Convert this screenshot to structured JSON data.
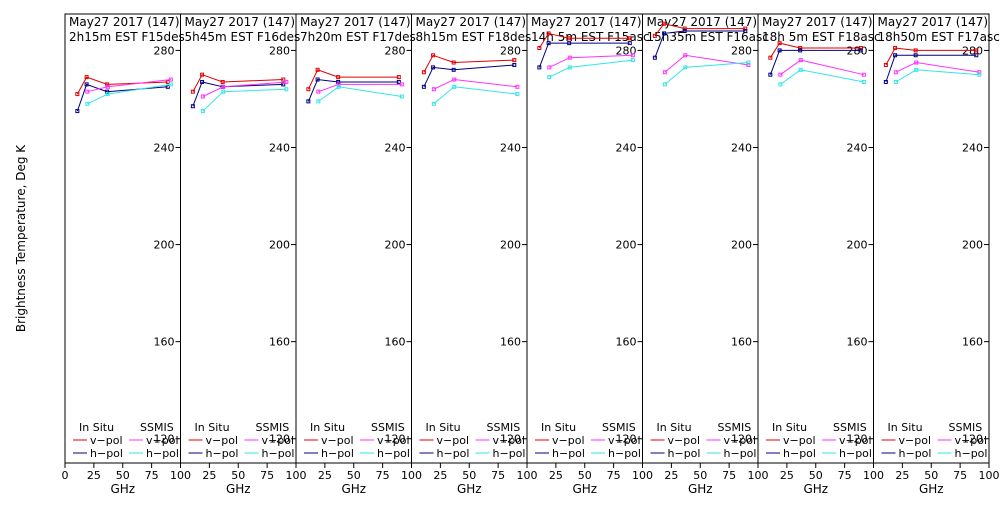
{
  "chart_data": {
    "type": "line",
    "ylabel": "Brightness Temperature, Deg K",
    "xlabel": "GHz",
    "ylim": [
      110,
      295
    ],
    "xlim": [
      0,
      100
    ],
    "yticks": [
      120,
      160,
      200,
      240,
      280
    ],
    "xticks": [
      0,
      25,
      50,
      75,
      100
    ],
    "xticklabels": [
      "0",
      "25",
      "50",
      "75",
      "100"
    ],
    "colors": {
      "insitu_v": "#e00000",
      "insitu_h": "#00007f",
      "ssmis_v": "#ff33ff",
      "ssmis_h": "#33e6e6"
    },
    "legend": {
      "insitu_header": "In Situ",
      "ssmis_header": "SSMIS",
      "insitu_v": "v−pol",
      "insitu_h": "h−pol",
      "ssmis_v": "v−pol",
      "ssmis_h": "h−pol"
    },
    "panels": [
      {
        "title1": "May27 2017 (147)",
        "title2": "2h15m EST F15des",
        "series": [
          {
            "key": "insitu_v",
            "x": [
              10.7,
              18.7,
              36.5,
              89
            ],
            "y": [
              262,
              269,
              266,
              267
            ]
          },
          {
            "key": "insitu_h",
            "x": [
              10.7,
              18.7,
              36.5,
              89
            ],
            "y": [
              255,
              266,
              263,
              265
            ]
          },
          {
            "key": "ssmis_v",
            "x": [
              19.35,
              37,
              91.65
            ],
            "y": [
              263,
              265,
              268
            ]
          },
          {
            "key": "ssmis_h",
            "x": [
              19.35,
              37,
              91.65
            ],
            "y": [
              258,
              262,
              266
            ]
          }
        ]
      },
      {
        "title1": "May27 2017 (147)",
        "title2": "5h45m EST F16des",
        "series": [
          {
            "key": "insitu_v",
            "x": [
              10.7,
              18.7,
              36.5,
              89
            ],
            "y": [
              263,
              270,
              267,
              268
            ]
          },
          {
            "key": "insitu_h",
            "x": [
              10.7,
              18.7,
              36.5,
              89
            ],
            "y": [
              257,
              267,
              265,
              266
            ]
          },
          {
            "key": "ssmis_v",
            "x": [
              19.35,
              37,
              91.65
            ],
            "y": [
              261,
              265,
              267
            ]
          },
          {
            "key": "ssmis_h",
            "x": [
              19.35,
              37,
              91.65
            ],
            "y": [
              255,
              263,
              264
            ]
          }
        ]
      },
      {
        "title1": "May27 2017 (147)",
        "title2": "7h20m EST F17des",
        "series": [
          {
            "key": "insitu_v",
            "x": [
              10.7,
              18.7,
              36.5,
              89
            ],
            "y": [
              264,
              272,
              269,
              269
            ]
          },
          {
            "key": "insitu_h",
            "x": [
              10.7,
              18.7,
              36.5,
              89
            ],
            "y": [
              259,
              268,
              267,
              267
            ]
          },
          {
            "key": "ssmis_v",
            "x": [
              19.35,
              37,
              91.65
            ],
            "y": [
              263,
              266,
              266
            ]
          },
          {
            "key": "ssmis_h",
            "x": [
              19.35,
              37,
              91.65
            ],
            "y": [
              259,
              265,
              261
            ]
          }
        ]
      },
      {
        "title1": "May27 2017 (147)",
        "title2": "8h15m EST F18des",
        "series": [
          {
            "key": "insitu_v",
            "x": [
              10.7,
              18.7,
              36.5,
              89
            ],
            "y": [
              271,
              278,
              275,
              276
            ]
          },
          {
            "key": "insitu_h",
            "x": [
              10.7,
              18.7,
              36.5,
              89
            ],
            "y": [
              265,
              273,
              272,
              274
            ]
          },
          {
            "key": "ssmis_v",
            "x": [
              19.35,
              37,
              91.65
            ],
            "y": [
              264,
              268,
              265
            ]
          },
          {
            "key": "ssmis_h",
            "x": [
              19.35,
              37,
              91.65
            ],
            "y": [
              258,
              265,
              262
            ]
          }
        ]
      },
      {
        "title1": "May27 2017 (147)",
        "title2": "14h 5m EST F15asc",
        "series": [
          {
            "key": "insitu_v",
            "x": [
              10.7,
              18.7,
              36.5,
              89
            ],
            "y": [
              281,
              287,
              285,
              285
            ]
          },
          {
            "key": "insitu_h",
            "x": [
              10.7,
              18.7,
              36.5,
              89
            ],
            "y": [
              273,
              283,
              283,
              283
            ]
          },
          {
            "key": "ssmis_v",
            "x": [
              19.35,
              37,
              91.65
            ],
            "y": [
              273,
              277,
              278
            ]
          },
          {
            "key": "ssmis_h",
            "x": [
              19.35,
              37,
              91.65
            ],
            "y": [
              269,
              273,
              276
            ]
          }
        ]
      },
      {
        "title1": "May27 2017 (147)",
        "title2": "15h35m EST F16asc",
        "series": [
          {
            "key": "insitu_v",
            "x": [
              10.7,
              18.7,
              36.5,
              89
            ],
            "y": [
              286,
              291,
              289,
              289
            ]
          },
          {
            "key": "insitu_h",
            "x": [
              10.7,
              18.7,
              36.5,
              89
            ],
            "y": [
              277,
              287,
              288,
              288
            ]
          },
          {
            "key": "ssmis_v",
            "x": [
              19.35,
              37,
              91.65
            ],
            "y": [
              271,
              278,
              274
            ]
          },
          {
            "key": "ssmis_h",
            "x": [
              19.35,
              37,
              91.65
            ],
            "y": [
              266,
              273,
              275
            ]
          }
        ]
      },
      {
        "title1": "May27 2017 (147)",
        "title2": "18h 5m EST F18asc",
        "series": [
          {
            "key": "insitu_v",
            "x": [
              10.7,
              18.7,
              36.5,
              89
            ],
            "y": [
              277,
              283,
              281,
              281
            ]
          },
          {
            "key": "insitu_h",
            "x": [
              10.7,
              18.7,
              36.5,
              89
            ],
            "y": [
              270,
              280,
              280,
              280
            ]
          },
          {
            "key": "ssmis_v",
            "x": [
              19.35,
              37,
              91.65
            ],
            "y": [
              270,
              276,
              270
            ]
          },
          {
            "key": "ssmis_h",
            "x": [
              19.35,
              37,
              91.65
            ],
            "y": [
              266,
              272,
              267
            ]
          }
        ]
      },
      {
        "title1": "May27 2017 (147)",
        "title2": "18h50m EST F17asc",
        "series": [
          {
            "key": "insitu_v",
            "x": [
              10.7,
              18.7,
              36.5,
              89
            ],
            "y": [
              274,
              281,
              280,
              280
            ]
          },
          {
            "key": "insitu_h",
            "x": [
              10.7,
              18.7,
              36.5,
              89
            ],
            "y": [
              267,
              278,
              278,
              278
            ]
          },
          {
            "key": "ssmis_v",
            "x": [
              19.35,
              37,
              91.65
            ],
            "y": [
              271,
              275,
              271
            ]
          },
          {
            "key": "ssmis_h",
            "x": [
              19.35,
              37,
              91.65
            ],
            "y": [
              267,
              272,
              270
            ]
          }
        ]
      }
    ]
  }
}
